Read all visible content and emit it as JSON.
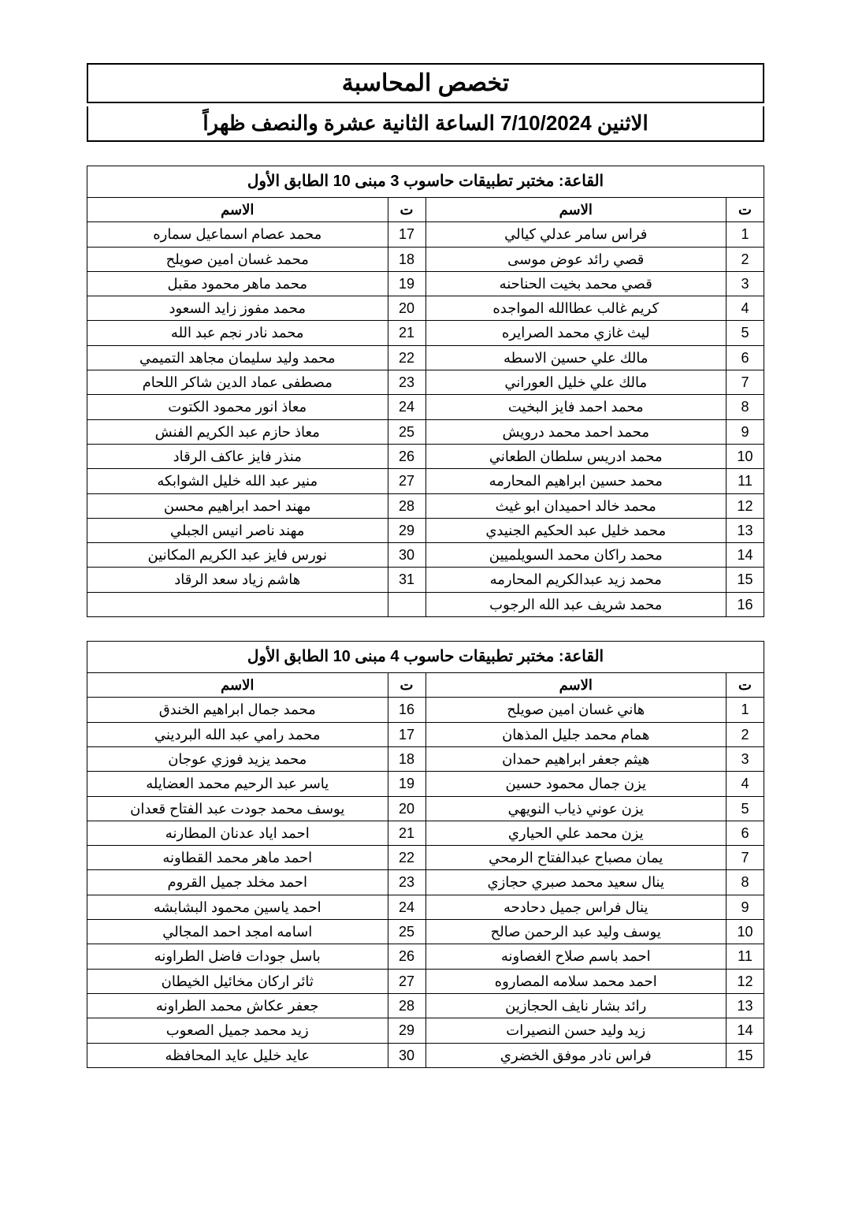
{
  "header": {
    "title": "تخصص المحاسبة",
    "datetime": "الاثنين 7/10/2024 الساعة الثانية عشرة والنصف ظهراً"
  },
  "columns": {
    "idx": "ت",
    "name": "الاسم"
  },
  "tables": [
    {
      "room": "القاعة: مختبر تطبيقات حاسوب 3 مبنى 10 الطابق الأول",
      "left": [
        {
          "i": 1,
          "n": "فراس سامر عدلي كيالي"
        },
        {
          "i": 2,
          "n": "قصي رائد عوض موسى"
        },
        {
          "i": 3,
          "n": "قصي محمد بخيت الحناحنه"
        },
        {
          "i": 4,
          "n": "كريم غالب عطاالله المواجده"
        },
        {
          "i": 5,
          "n": "ليث غازي محمد الصرايره"
        },
        {
          "i": 6,
          "n": "مالك علي حسين الاسطه"
        },
        {
          "i": 7,
          "n": "مالك علي خليل العوراني"
        },
        {
          "i": 8,
          "n": "محمد احمد فايز البخيت"
        },
        {
          "i": 9,
          "n": "محمد احمد محمد درويش"
        },
        {
          "i": 10,
          "n": "محمد ادريس سلطان الطعاني"
        },
        {
          "i": 11,
          "n": "محمد حسين ابراهيم المحارمه"
        },
        {
          "i": 12,
          "n": "محمد خالد احميدان ابو غيث"
        },
        {
          "i": 13,
          "n": "محمد خليل عبد الحكيم الجنيدي"
        },
        {
          "i": 14,
          "n": "محمد راكان محمد السويلميين"
        },
        {
          "i": 15,
          "n": "محمد زيد عبدالكريم المحارمه"
        },
        {
          "i": 16,
          "n": "محمد شريف عبد الله الرجوب"
        }
      ],
      "right": [
        {
          "i": 17,
          "n": "محمد عصام اسماعيل سماره"
        },
        {
          "i": 18,
          "n": "محمد غسان امين صويلح"
        },
        {
          "i": 19,
          "n": "محمد ماهر محمود مقبل"
        },
        {
          "i": 20,
          "n": "محمد مفوز زايد السعود"
        },
        {
          "i": 21,
          "n": "محمد نادر نجم عبد الله"
        },
        {
          "i": 22,
          "n": "محمد وليد سليمان مجاهد التميمي"
        },
        {
          "i": 23,
          "n": "مصطفى عماد الدين شاكر اللحام"
        },
        {
          "i": 24,
          "n": "معاذ انور محمود الكتوت"
        },
        {
          "i": 25,
          "n": "معاذ حازم عبد الكريم الفنش"
        },
        {
          "i": 26,
          "n": "منذر فايز عاكف الرقاد"
        },
        {
          "i": 27,
          "n": "منير عبد الله خليل الشوابكه"
        },
        {
          "i": 28,
          "n": "مهند احمد ابراهيم محسن"
        },
        {
          "i": 29,
          "n": "مهند ناصر انيس الجبلي"
        },
        {
          "i": 30,
          "n": "نورس فايز عبد الكريم المكانين"
        },
        {
          "i": 31,
          "n": "هاشم زياد سعد الرقاد"
        }
      ]
    },
    {
      "room": "القاعة: مختبر تطبيقات حاسوب 4 مبنى 10 الطابق الأول",
      "left": [
        {
          "i": 1,
          "n": "هاني غسان امين صويلح"
        },
        {
          "i": 2,
          "n": "همام محمد جليل المذهان"
        },
        {
          "i": 3,
          "n": "هيثم جعفر ابراهيم حمدان"
        },
        {
          "i": 4,
          "n": "يزن جمال محمود حسين"
        },
        {
          "i": 5,
          "n": "يزن عوني ذياب النويهي"
        },
        {
          "i": 6,
          "n": "يزن محمد علي الحياري"
        },
        {
          "i": 7,
          "n": "يمان مصباح عبدالفتاح الرمحي"
        },
        {
          "i": 8,
          "n": "ينال سعيد محمد صبري حجازي"
        },
        {
          "i": 9,
          "n": "ينال فراس جميل دحادحه"
        },
        {
          "i": 10,
          "n": "يوسف وليد عبد الرحمن صالح"
        },
        {
          "i": 11,
          "n": "احمد باسم صلاح الغصاونه"
        },
        {
          "i": 12,
          "n": "احمد محمد سلامه المصاروه"
        },
        {
          "i": 13,
          "n": "رائد بشار نايف الحجازين"
        },
        {
          "i": 14,
          "n": "زيد وليد حسن النصيرات"
        },
        {
          "i": 15,
          "n": "فراس نادر موفق الخضري"
        }
      ],
      "right": [
        {
          "i": 16,
          "n": "محمد جمال ابراهيم الخندق"
        },
        {
          "i": 17,
          "n": "محمد رامي عبد الله البرديني"
        },
        {
          "i": 18,
          "n": "محمد يزيد فوزي عوجان"
        },
        {
          "i": 19,
          "n": "ياسر عبد الرحيم محمد العضايله"
        },
        {
          "i": 20,
          "n": "يوسف محمد جودت عبد الفتاح قعدان"
        },
        {
          "i": 21,
          "n": "احمد اياد عدنان المطارنه"
        },
        {
          "i": 22,
          "n": "احمد ماهر محمد القطاونه"
        },
        {
          "i": 23,
          "n": "احمد مخلد جميل القروم"
        },
        {
          "i": 24,
          "n": "احمد ياسين محمود البشابشه"
        },
        {
          "i": 25,
          "n": "اسامه امجد احمد المجالي"
        },
        {
          "i": 26,
          "n": "باسل جودات فاضل الطراونه"
        },
        {
          "i": 27,
          "n": "ثائر اركان مخائيل الخيطان"
        },
        {
          "i": 28,
          "n": "جعفر عكاش محمد الطراونه"
        },
        {
          "i": 29,
          "n": "زيد محمد جميل الصعوب"
        },
        {
          "i": 30,
          "n": "عايد خليل عايد المحافظه"
        }
      ]
    }
  ]
}
